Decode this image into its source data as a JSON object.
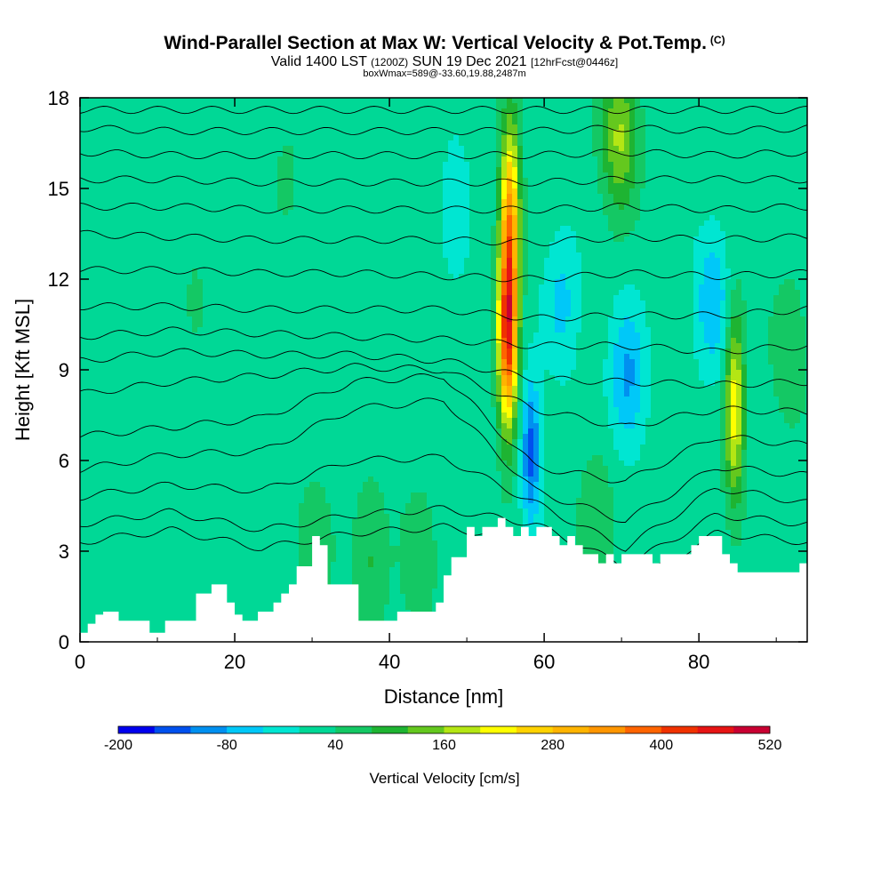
{
  "header": {
    "title": "Wind-Parallel Section at Max W: Vertical Velocity & Pot.Temp.",
    "copyright": "(C)",
    "valid_prefix": "Valid 1400 LST",
    "valid_utc": "(1200Z)",
    "valid_date": "SUN 19 Dec 2021",
    "forecast": "[12hrFcst@0446z]",
    "box_info": "boxWmax=589@-33.60,19.88,2487m"
  },
  "chart_data": {
    "type": "heatmap",
    "xlabel": "Distance [nm]",
    "ylabel": "Height [Kft MSL]",
    "xlim": [
      0,
      94
    ],
    "ylim": [
      0,
      18
    ],
    "x_ticks": [
      "0",
      "20",
      "40",
      "60",
      "80"
    ],
    "x_tick_values": [
      0,
      20,
      40,
      60,
      80
    ],
    "y_ticks": [
      "0",
      "3",
      "6",
      "9",
      "12",
      "15",
      "18"
    ],
    "y_tick_values": [
      0,
      3,
      6,
      9,
      12,
      15,
      18
    ],
    "colorbar": {
      "title": "Vertical Velocity [cm/s]",
      "min": -200,
      "step": 40,
      "colors": [
        "#0000ee",
        "#0050ee",
        "#0090f0",
        "#00c8f8",
        "#00e6d2",
        "#00d896",
        "#14c864",
        "#1eb432",
        "#64c81e",
        "#b4e614",
        "#ffff00",
        "#ffd200",
        "#ffb400",
        "#ff9600",
        "#ff6400",
        "#f03200",
        "#e61414",
        "#c80032"
      ],
      "tick_labels": [
        "-200",
        "-80",
        "40",
        "160",
        "280",
        "400",
        "520"
      ],
      "tick_values": [
        -200,
        -80,
        40,
        160,
        280,
        400,
        520
      ]
    },
    "terrain_profile": {
      "x": [
        0,
        1,
        1,
        2,
        2,
        3,
        3,
        5,
        5,
        9,
        9,
        11,
        11,
        15,
        15,
        17,
        17,
        19,
        19,
        20,
        20,
        21,
        21,
        23,
        23,
        25,
        25,
        26,
        26,
        27,
        27,
        28,
        28,
        30,
        30,
        31,
        31,
        32,
        32,
        36,
        36,
        41,
        41,
        46,
        46,
        47,
        47,
        48,
        48,
        50,
        50,
        51,
        51,
        52,
        52,
        54,
        54,
        55,
        55,
        56,
        56,
        57,
        57,
        58,
        58,
        59,
        59,
        61,
        61,
        62,
        62,
        63,
        63,
        64,
        64,
        65,
        65,
        67,
        67,
        68,
        68,
        69,
        69,
        70,
        70,
        74,
        74,
        75,
        75,
        79,
        79,
        80,
        80,
        83,
        83,
        84,
        84,
        85,
        85,
        86,
        86,
        93,
        93,
        94
      ],
      "y": [
        0.3,
        0.3,
        0.6,
        0.6,
        0.9,
        0.9,
        1,
        1,
        0.7,
        0.7,
        0.3,
        0.3,
        0.7,
        0.7,
        1.6,
        1.6,
        1.9,
        1.9,
        1.3,
        1.3,
        0.9,
        0.9,
        0.7,
        0.7,
        1,
        1,
        1.3,
        1.3,
        1.6,
        1.6,
        1.9,
        1.9,
        2.5,
        2.5,
        3.5,
        3.5,
        3.2,
        3.2,
        1.9,
        1.9,
        0.7,
        0.7,
        1,
        1,
        1.3,
        1.3,
        2.2,
        2.2,
        2.8,
        2.8,
        3.8,
        3.8,
        3.5,
        3.5,
        3.8,
        3.8,
        4.1,
        4.1,
        3.8,
        3.8,
        3.5,
        3.5,
        3.8,
        3.8,
        3.5,
        3.5,
        3.8,
        3.8,
        3.5,
        3.5,
        3.2,
        3.2,
        3.5,
        3.5,
        3.2,
        3.2,
        2.9,
        2.9,
        2.6,
        2.6,
        2.9,
        2.9,
        2.6,
        2.6,
        2.9,
        2.9,
        2.6,
        2.6,
        2.9,
        2.9,
        3.2,
        3.2,
        3.5,
        3.5,
        2.9,
        2.9,
        2.6,
        2.6,
        2.3,
        2.3,
        2.3,
        2.3,
        2.6,
        2.6
      ]
    },
    "features": [
      {
        "x": 55.3,
        "y": 10.2,
        "w": 400
      },
      {
        "x": 55.6,
        "y": 14.2,
        "w": 260
      },
      {
        "x": 84.6,
        "y": 7.8,
        "w": 200
      },
      {
        "x": 69.8,
        "y": 16.7,
        "w": 150
      },
      {
        "x": 58.3,
        "y": 6.3,
        "w": -160
      },
      {
        "x": 70.8,
        "y": 8.7,
        "w": -110
      },
      {
        "x": 81.8,
        "y": 11.3,
        "w": -95
      },
      {
        "x": 62.3,
        "y": 11.2,
        "w": -70
      },
      {
        "x": 48.6,
        "y": 14.2,
        "w": -45
      },
      {
        "x": 37.5,
        "y": 2.8,
        "w": 65
      },
      {
        "x": 30.2,
        "y": 2.9,
        "w": 55
      },
      {
        "x": 43.8,
        "y": 2.6,
        "w": 50
      },
      {
        "x": 66.8,
        "y": 4.1,
        "w": 55
      },
      {
        "x": 91.7,
        "y": 9.6,
        "w": 55
      },
      {
        "x": 14.8,
        "y": 10.9,
        "w": 28
      },
      {
        "x": 26.7,
        "y": 15.8,
        "w": 25
      }
    ],
    "isentropes": [
      {
        "base": 3.3,
        "amps": [
          0,
          0.4,
          -0.2,
          0.3,
          0.5,
          0,
          -1.5,
          0.3,
          0
        ]
      },
      {
        "base": 3.9,
        "amps": [
          0,
          0.4,
          -0.2,
          0.3,
          0.5,
          0,
          -1.4,
          0.3,
          0
        ]
      },
      {
        "base": 4.6,
        "amps": [
          0.2,
          0.6,
          0.4,
          1.4,
          1.5,
          0,
          -1.5,
          0.5,
          0
        ]
      },
      {
        "base": 5.3,
        "amps": [
          0.4,
          0.9,
          1.0,
          2.4,
          2.7,
          -0.3,
          -1.3,
          0.5,
          0.2
        ]
      },
      {
        "base": 6.0,
        "amps": [
          0.8,
          1.1,
          1.4,
          2.6,
          2.8,
          -0.2,
          -0.7,
          0.8,
          0.5
        ]
      },
      {
        "base": 7.2,
        "amps": [
          1.0,
          1.4,
          1.6,
          1.9,
          1.8,
          0.5,
          -0.1,
          0.5,
          0.4
        ]
      },
      {
        "base": 8.3,
        "amps": [
          1.0,
          1.3,
          1.2,
          1.2,
          1.0,
          0.4,
          0.3,
          0.2,
          0.3
        ]
      },
      {
        "base": 9.6,
        "amps": [
          0.5,
          0.7,
          0.6,
          0.5,
          0.4,
          0.2,
          0.2,
          0.0,
          0.2
        ]
      },
      {
        "base": 10.8,
        "amps": [
          0.3,
          0.3,
          0.2,
          0.2,
          0.2,
          -0.1,
          0.0,
          0.0,
          0.2
        ]
      },
      {
        "base": 12.1,
        "amps": [
          0.2,
          0.2,
          0.1,
          0.1,
          0.0,
          -0.1,
          0.1,
          0.0,
          0.1
        ]
      },
      {
        "base": 13.3,
        "amps": [
          0.2,
          0.1,
          0.0,
          0.0,
          0.0,
          -0.1,
          0.1,
          0.0,
          0.1
        ]
      },
      {
        "base": 14.3,
        "amps": [
          0.1,
          0.1,
          0.0,
          0.0,
          0.0,
          0.0,
          0.1,
          0.0,
          0.1
        ]
      },
      {
        "base": 15.2,
        "amps": [
          0.1,
          0.1,
          0.0,
          0.0,
          0.0,
          0.0,
          0.1,
          0.1,
          0.1
        ]
      },
      {
        "base": 16.1,
        "amps": [
          0.1,
          0.0,
          0.0,
          0.0,
          0.0,
          0.0,
          0.1,
          0.0,
          0.1
        ]
      },
      {
        "base": 16.9,
        "amps": [
          0.1,
          0.0,
          0.0,
          0.0,
          0.0,
          0.0,
          0.1,
          0.0,
          0.1
        ]
      },
      {
        "base": 17.6,
        "amps": [
          0.0,
          0.0,
          0.0,
          0.0,
          0.0,
          0.0,
          0.0,
          0.0,
          0.0
        ]
      }
    ]
  }
}
